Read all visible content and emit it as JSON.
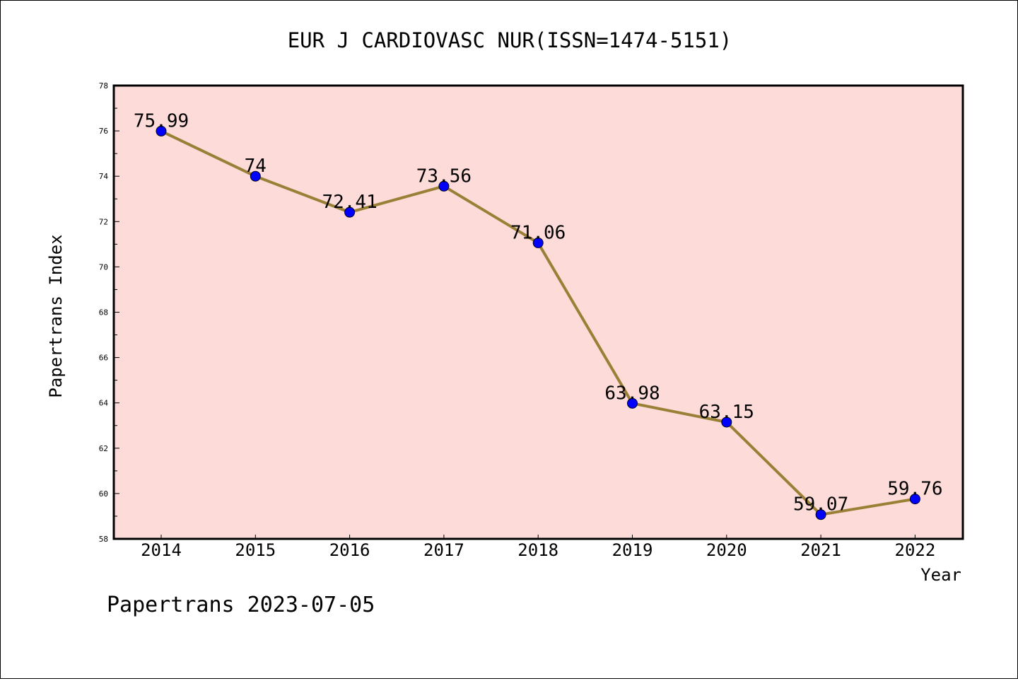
{
  "chart_data": {
    "type": "line",
    "title": "EUR J CARDIOVASC NUR(ISSN=1474-5151)",
    "xlabel": "Year",
    "ylabel": "Papertrans Index",
    "categories": [
      "2014",
      "2015",
      "2016",
      "2017",
      "2018",
      "2019",
      "2020",
      "2021",
      "2022"
    ],
    "series": [
      {
        "values": [
          75.99,
          74,
          72.41,
          73.56,
          71.06,
          63.98,
          63.15,
          59.07,
          59.76
        ],
        "labels": [
          "75.99",
          "74",
          "72.41",
          "73.56",
          "71.06",
          "63.98",
          "63.15",
          "59.07",
          "59.76"
        ]
      }
    ],
    "ylim": [
      58,
      78
    ],
    "yticks": [
      "58",
      "60",
      "62",
      "64",
      "66",
      "68",
      "70",
      "72",
      "74",
      "76",
      "78"
    ],
    "grid": false,
    "colors": {
      "plot_background": "#fddbd8",
      "line": "#9a8037",
      "marker": "#0000ff"
    }
  },
  "footer": {
    "watermark": "Papertrans 2023-07-05"
  }
}
